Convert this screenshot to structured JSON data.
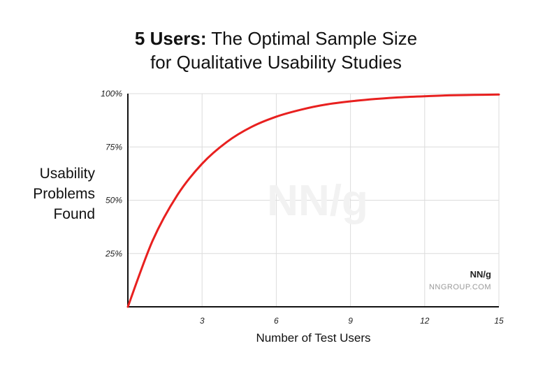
{
  "chart_data": {
    "type": "line",
    "title": {
      "bold": "5 Users:",
      "rest": "The Optimal Sample Size",
      "line2": "for Qualitative Usability Studies"
    },
    "xlabel": "Number of Test Users",
    "ylabel": [
      "Usability",
      "Problems",
      "Found"
    ],
    "xlim": [
      0,
      15
    ],
    "ylim": [
      0,
      100
    ],
    "x_ticks": [
      3,
      6,
      9,
      12,
      15
    ],
    "y_ticks": [
      25,
      50,
      75,
      100
    ],
    "y_tick_labels": [
      "25%",
      "50%",
      "75%",
      "100%"
    ],
    "grid": true,
    "line_color": "#e8201f",
    "series": [
      {
        "x": [
          0,
          1,
          2,
          3,
          4,
          5,
          6,
          7,
          8,
          9,
          10,
          11,
          12,
          13,
          14,
          15
        ],
        "values": [
          0,
          31,
          52.4,
          67.1,
          77.3,
          84.4,
          89.2,
          92.5,
          94.9,
          96.4,
          97.5,
          98.3,
          98.8,
          99.2,
          99.4,
          99.6
        ]
      }
    ]
  },
  "watermark": "NN/g",
  "brand": {
    "logo": "NN/g",
    "url": "NNGROUP.COM"
  }
}
